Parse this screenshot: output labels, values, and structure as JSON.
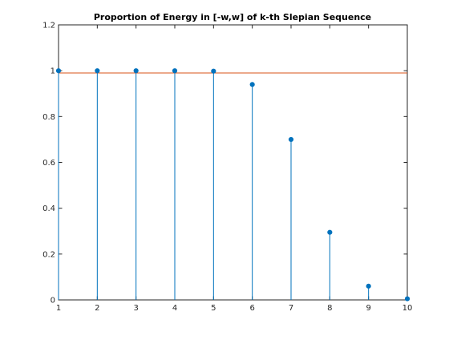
{
  "chart_data": {
    "type": "stem",
    "title": "Proportion of Energy in [-w,w] of k-th Slepian Sequence",
    "xlabel": "",
    "ylabel": "",
    "xlim": [
      1,
      10
    ],
    "ylim": [
      0,
      1.2
    ],
    "xticks": [
      1,
      2,
      3,
      4,
      5,
      6,
      7,
      8,
      9,
      10
    ],
    "yticks": [
      0,
      0.2,
      0.4,
      0.6,
      0.8,
      1,
      1.2
    ],
    "xtick_labels": [
      "1",
      "2",
      "3",
      "4",
      "5",
      "6",
      "7",
      "8",
      "9",
      "10"
    ],
    "ytick_labels": [
      "0",
      "0.2",
      "0.4",
      "0.6",
      "0.8",
      "1",
      "1.2"
    ],
    "grid": false,
    "legend": "none",
    "series": [
      {
        "type": "stem",
        "color": "#0072bd",
        "x": [
          1,
          2,
          3,
          4,
          5,
          6,
          7,
          8,
          9,
          10
        ],
        "y": [
          1.0,
          1.0,
          1.0,
          1.0,
          0.998,
          0.94,
          0.7,
          0.295,
          0.06,
          0.005
        ]
      },
      {
        "type": "line",
        "color": "#d95319",
        "x": [
          1,
          10
        ],
        "y": [
          0.99,
          0.99
        ]
      }
    ]
  }
}
